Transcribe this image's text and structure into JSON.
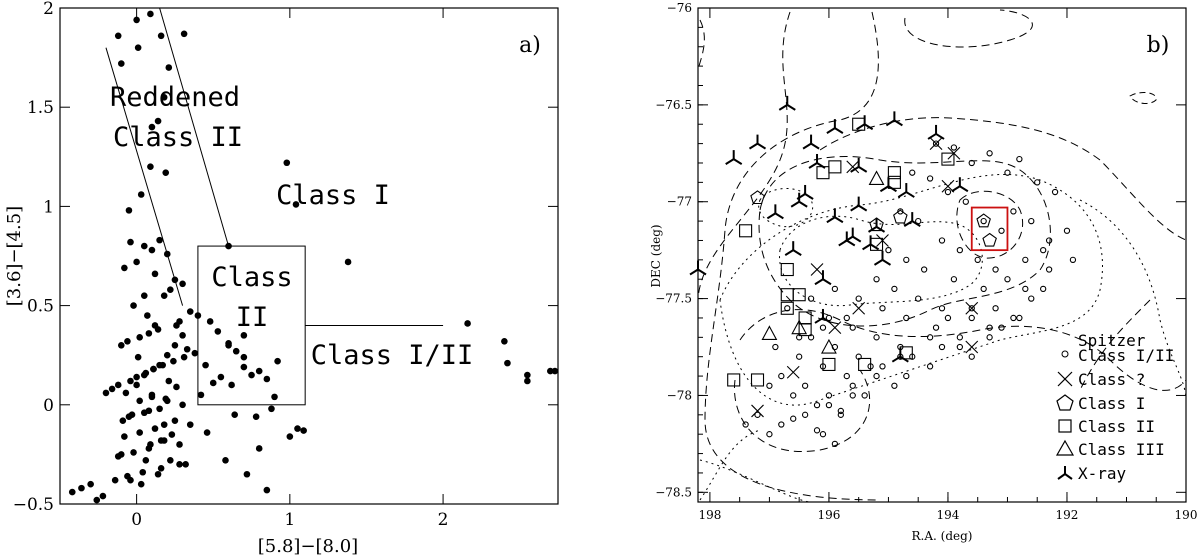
{
  "chart_data": [
    {
      "type": "scatter",
      "panel_label": "a)",
      "xlabel": "[5.8]−[8.0]",
      "ylabel": "[3.6]−[4.5]",
      "xlim": [
        -0.5,
        2.75
      ],
      "ylim": [
        -0.5,
        2.0
      ],
      "xticks": [
        0,
        1,
        2
      ],
      "xtick_labels": [
        "0",
        "1",
        "2"
      ],
      "yticks": [
        -0.5,
        0,
        0.5,
        1,
        1.5,
        2
      ],
      "ytick_labels": [
        "−0.5",
        "0",
        "0.5",
        "1",
        "1.5",
        "2"
      ],
      "region_labels": {
        "reddened_line1": "Reddened",
        "reddened_line2": "Class II",
        "class1": "Class I",
        "class2_line1": "Class",
        "class2_line2": "II",
        "class12": "Class I/II"
      },
      "class2_box": {
        "x": [
          0.4,
          1.1
        ],
        "y": [
          0.0,
          0.8
        ]
      },
      "reddening_lines": [
        {
          "x": [
            -0.2,
            0.3
          ],
          "y": [
            1.8,
            0.5
          ]
        },
        {
          "x": [
            0.15,
            0.6
          ],
          "y": [
            2.0,
            0.8
          ]
        }
      ],
      "class12_line": {
        "x": [
          1.1,
          2.0
        ],
        "y": [
          0.4,
          0.4
        ]
      },
      "points": {
        "x": [
          0.09,
          0.0,
          -0.12,
          0.16,
          -0.1,
          0.31,
          0.01,
          0.21,
          0.18,
          0.14,
          0.1,
          0.09,
          0.03,
          -0.05,
          0.19,
          0.6,
          0.98,
          1.04,
          1.38,
          0.7,
          2.16,
          2.4,
          2.42,
          2.55,
          2.55,
          2.7,
          2.73,
          0.48,
          0.53,
          0.6,
          0.65,
          0.7,
          0.75,
          0.85,
          0.8,
          0.92,
          0.55,
          0.62,
          0.7,
          0.5,
          0.45,
          0.42,
          0.9,
          1.05,
          1.09,
          1.0,
          0.8,
          0.85,
          0.72,
          0.58,
          0.46,
          0.64,
          0.78,
          0.88,
          0.6,
          -0.04,
          0.05,
          0.1,
          0.15,
          0.2,
          0.0,
          -0.08,
          0.12,
          0.25,
          0.3,
          0.22,
          0.18,
          0.05,
          -0.02,
          0.35,
          0.4,
          0.28,
          0.26,
          0.14,
          0.08,
          0.02,
          -0.06,
          -0.1,
          0.33,
          0.38,
          0.31,
          0.24,
          0.17,
          0.11,
          0.06,
          0.0,
          -0.04,
          -0.12,
          -0.16,
          -0.2,
          0.1,
          0.2,
          0.3,
          0.15,
          0.05,
          -0.05,
          0.25,
          0.35,
          0.12,
          0.02,
          -0.08,
          0.18,
          0.28,
          0.08,
          -0.02,
          -0.12,
          0.22,
          0.32,
          0.16,
          0.04,
          -0.06,
          -0.14,
          -0.3,
          -0.36,
          -0.42,
          -0.22,
          -0.26,
          0.02,
          0.1,
          0.0,
          0.05,
          0.15,
          0.2,
          0.25,
          0.3,
          0.12,
          0.07,
          -0.03,
          0.18,
          0.23,
          0.09,
          -0.1,
          0.28,
          0.14,
          0.03,
          -0.07,
          0.21,
          0.11,
          0.01,
          -0.09,
          0.16,
          0.06,
          -0.04,
          0.26,
          0.19,
          0.08
        ],
        "y": [
          1.97,
          1.94,
          1.86,
          1.86,
          1.72,
          1.87,
          1.8,
          1.7,
          1.55,
          1.43,
          1.4,
          1.2,
          1.06,
          0.98,
          1.17,
          0.8,
          1.22,
          1.01,
          0.72,
          0.35,
          0.41,
          0.32,
          0.21,
          0.15,
          0.12,
          0.17,
          0.17,
          0.42,
          0.37,
          0.31,
          0.27,
          0.24,
          0.15,
          0.13,
          0.17,
          0.22,
          0.14,
          0.1,
          0.19,
          0.11,
          0.2,
          0.05,
          0.04,
          -0.12,
          -0.13,
          -0.16,
          -0.22,
          -0.43,
          -0.35,
          -0.28,
          -0.14,
          -0.05,
          -0.06,
          -0.02,
          0.3,
          0.82,
          0.8,
          0.78,
          0.83,
          0.76,
          0.72,
          0.69,
          0.66,
          0.63,
          0.61,
          0.58,
          0.55,
          0.55,
          0.5,
          0.47,
          0.45,
          0.42,
          0.4,
          0.38,
          0.36,
          0.34,
          0.32,
          0.3,
          0.28,
          0.26,
          0.24,
          0.22,
          0.2,
          0.18,
          0.16,
          0.14,
          0.12,
          0.1,
          0.08,
          0.06,
          0.04,
          0.02,
          0.0,
          -0.02,
          -0.04,
          -0.06,
          -0.08,
          -0.1,
          -0.12,
          -0.14,
          -0.16,
          -0.18,
          -0.2,
          -0.22,
          -0.24,
          -0.26,
          -0.28,
          -0.3,
          -0.32,
          -0.34,
          -0.36,
          -0.38,
          -0.4,
          -0.42,
          -0.44,
          -0.46,
          -0.48,
          0.02,
          0.05,
          0.1,
          0.15,
          0.2,
          0.25,
          0.3,
          0.35,
          0.4,
          0.45,
          -0.05,
          -0.1,
          -0.15,
          -0.2,
          -0.25,
          -0.3,
          -0.35,
          -0.4,
          0.06,
          0.12,
          0.18,
          0.24,
          -0.08,
          -0.18,
          -0.28,
          -0.38,
          0.09,
          0.03,
          -0.03
        ]
      }
    },
    {
      "type": "scatter",
      "panel_label": "b)",
      "xlabel": "R.A. (deg)",
      "ylabel": "DEC (deg)",
      "xlim": [
        198.2,
        190.0
      ],
      "ylim": [
        -78.55,
        -76.0
      ],
      "xticks": [
        198,
        196,
        194,
        192,
        190
      ],
      "xtick_labels": [
        "198",
        "196",
        "194",
        "192",
        "190"
      ],
      "yticks": [
        -76,
        -76.5,
        -77,
        -77.5,
        -78,
        -78.5
      ],
      "ytick_labels": [
        "−76",
        "−76.5",
        "−77",
        "−77.5",
        "−78",
        "−78.5"
      ],
      "highlight_box": {
        "x": [
          193.0,
          193.6
        ],
        "y": [
          -77.25,
          -77.03
        ],
        "color": "#cc1111"
      },
      "legend": [
        {
          "marker": "circle",
          "label_line1": "Spitzer",
          "label_line2": "Class I/II"
        },
        {
          "marker": "cross",
          "label": "Class ?"
        },
        {
          "marker": "pentagon",
          "label": "Class I"
        },
        {
          "marker": "square",
          "label": "Class II"
        },
        {
          "marker": "triangle",
          "label": "Class III"
        },
        {
          "marker": "tri",
          "label": "X-ray"
        }
      ],
      "series": [
        {
          "name": "Spitzer Class I/II",
          "marker": "circle",
          "x": [
            194.2,
            193.9,
            193.6,
            193.3,
            193.0,
            192.8,
            192.5,
            192.2,
            194.6,
            194.3,
            194.0,
            193.7,
            193.4,
            193.1,
            192.9,
            192.6,
            192.3,
            192.0,
            194.8,
            194.5,
            194.1,
            193.8,
            193.5,
            193.2,
            192.7,
            192.4,
            195.0,
            194.7,
            194.4,
            193.9,
            193.4,
            193.0,
            192.6,
            195.2,
            194.9,
            194.5,
            194.1,
            193.6,
            193.2,
            192.8,
            192.4,
            195.5,
            195.1,
            194.7,
            194.2,
            193.8,
            193.3,
            192.9,
            196.0,
            195.6,
            195.2,
            194.8,
            194.3,
            193.8,
            193.3,
            196.3,
            195.9,
            195.5,
            195.1,
            194.6,
            194.1,
            193.6,
            196.5,
            196.1,
            195.7,
            195.3,
            194.8,
            194.3,
            196.8,
            196.4,
            196.0,
            195.6,
            195.2,
            194.7,
            197.0,
            196.6,
            196.2,
            195.8,
            195.4,
            194.9,
            197.2,
            196.8,
            196.4,
            196.0,
            195.6,
            197.4,
            197.0,
            196.6,
            196.2,
            195.8,
            196.9,
            196.5,
            196.1,
            195.7,
            196.7,
            196.3,
            195.9,
            196.1,
            195.9,
            194.0,
            193.6,
            193.1,
            192.7,
            192.3,
            191.9
          ],
          "y": [
            -76.7,
            -76.72,
            -76.8,
            -76.75,
            -76.85,
            -76.78,
            -76.9,
            -76.95,
            -76.85,
            -76.88,
            -76.95,
            -77.0,
            -77.1,
            -77.15,
            -77.05,
            -77.1,
            -77.2,
            -77.15,
            -77.05,
            -77.1,
            -77.2,
            -77.25,
            -77.3,
            -77.35,
            -77.3,
            -77.25,
            -77.25,
            -77.3,
            -77.35,
            -77.4,
            -77.45,
            -77.4,
            -77.5,
            -77.4,
            -77.45,
            -77.5,
            -77.55,
            -77.6,
            -77.55,
            -77.6,
            -77.45,
            -77.5,
            -77.55,
            -77.6,
            -77.65,
            -77.7,
            -77.65,
            -77.6,
            -77.6,
            -77.65,
            -77.7,
            -77.75,
            -77.7,
            -77.75,
            -77.7,
            -77.7,
            -77.75,
            -77.8,
            -77.85,
            -77.8,
            -77.75,
            -77.8,
            -77.8,
            -77.85,
            -77.9,
            -77.85,
            -77.8,
            -77.85,
            -77.9,
            -77.95,
            -78.0,
            -77.95,
            -77.9,
            -77.9,
            -77.95,
            -78.0,
            -78.05,
            -78.1,
            -78.0,
            -77.95,
            -78.1,
            -78.15,
            -78.1,
            -78.05,
            -78.0,
            -78.15,
            -78.2,
            -78.12,
            -78.18,
            -78.08,
            -77.75,
            -77.7,
            -77.65,
            -77.6,
            -77.55,
            -77.5,
            -77.45,
            -78.2,
            -78.25,
            -77.6,
            -77.55,
            -77.65,
            -77.45,
            -77.35,
            -77.3
          ]
        },
        {
          "name": "Class ?",
          "marker": "cross",
          "x": [
            194.2,
            193.9,
            194.0,
            195.6,
            195.5,
            193.6,
            193.6,
            196.2,
            196.6,
            197.2,
            195.1,
            195.9
          ],
          "y": [
            -76.7,
            -76.75,
            -76.92,
            -76.82,
            -77.55,
            -77.55,
            -77.75,
            -77.35,
            -77.88,
            -78.08,
            -77.2,
            -77.65
          ]
        },
        {
          "name": "Class I",
          "marker": "pentagon",
          "x": [
            197.2,
            194.8,
            193.4,
            193.3,
            195.2
          ],
          "y": [
            -76.98,
            -77.08,
            -77.1,
            -77.2,
            -77.12
          ]
        },
        {
          "name": "Class II",
          "marker": "square",
          "x": [
            195.5,
            196.1,
            194.9,
            194.9,
            195.9,
            196.7,
            196.7,
            196.7,
            196.5,
            196.4,
            196.4,
            197.4,
            197.6,
            197.2,
            196.0,
            195.4,
            194.7,
            194.0,
            195.2
          ],
          "y": [
            -76.6,
            -76.85,
            -76.85,
            -76.9,
            -76.82,
            -77.35,
            -77.48,
            -77.55,
            -77.48,
            -77.6,
            -77.66,
            -77.15,
            -77.92,
            -77.92,
            -77.84,
            -77.84,
            -77.78,
            -76.78,
            -77.22
          ]
        },
        {
          "name": "Class III",
          "marker": "triangle",
          "x": [
            195.2,
            196.5,
            196.0,
            197.0
          ],
          "y": [
            -76.88,
            -77.65,
            -77.75,
            -77.68
          ]
        },
        {
          "name": "X-ray",
          "marker": "tri",
          "x": [
            198.2,
            197.6,
            197.2,
            196.7,
            195.9,
            195.4,
            196.2,
            196.4,
            195.5,
            194.9,
            194.2,
            193.8,
            194.6,
            196.6,
            196.9,
            196.5,
            195.9,
            195.6,
            195.3,
            195.1,
            194.8,
            196.1,
            195.7,
            195.5,
            195.2,
            195.0,
            196.3,
            194.7,
            196.1
          ],
          "y": [
            -77.35,
            -76.78,
            -76.7,
            -76.5,
            -76.62,
            -76.6,
            -76.8,
            -76.96,
            -76.82,
            -76.58,
            -76.65,
            -76.92,
            -77.1,
            -77.25,
            -77.06,
            -77.0,
            -77.08,
            -77.18,
            -77.22,
            -77.3,
            -77.8,
            -77.6,
            -77.2,
            -77.02,
            -77.13,
            -76.92,
            -76.7,
            -76.95,
            -77.4
          ]
        }
      ]
    }
  ]
}
